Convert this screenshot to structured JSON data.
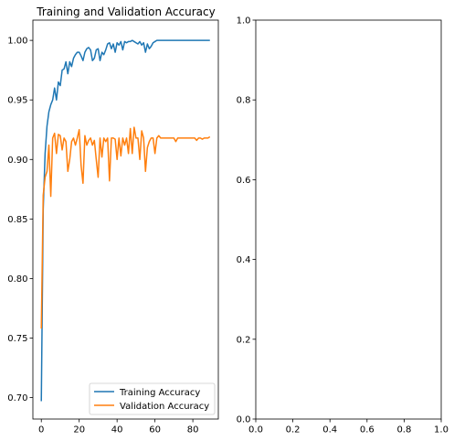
{
  "chart_data": [
    {
      "type": "line",
      "title": "Training and Validation Accuracy",
      "xlabel": "",
      "ylabel": "",
      "xlim": [
        -4.45,
        93.45
      ],
      "ylim": [
        0.682,
        1.017
      ],
      "xticks": [
        0,
        20,
        40,
        60,
        80
      ],
      "yticks": [
        0.7,
        0.75,
        0.8,
        0.85,
        0.9,
        0.95,
        1.0
      ],
      "xtick_labels": [
        "0",
        "20",
        "40",
        "60",
        "80"
      ],
      "ytick_labels": [
        "0.70",
        "0.75",
        "0.80",
        "0.85",
        "0.90",
        "0.95",
        "1.00"
      ],
      "grid": false,
      "legend": "lower-right",
      "series": [
        {
          "name": "Training Accuracy",
          "color": "#1f77b4",
          "x": [
            0,
            1,
            2,
            3,
            4,
            5,
            6,
            7,
            8,
            9,
            10,
            11,
            12,
            13,
            14,
            15,
            16,
            17,
            18,
            19,
            20,
            21,
            22,
            23,
            24,
            25,
            26,
            27,
            28,
            29,
            30,
            31,
            32,
            33,
            34,
            35,
            36,
            37,
            38,
            39,
            40,
            41,
            42,
            43,
            44,
            45,
            46,
            47,
            48,
            49,
            50,
            51,
            52,
            53,
            54,
            55,
            56,
            57,
            58,
            59,
            60,
            61,
            62,
            63,
            64,
            65,
            66,
            67,
            68,
            69,
            70,
            71,
            72,
            73,
            74,
            75,
            76,
            77,
            78,
            79,
            80,
            81,
            82,
            83,
            84,
            85,
            86,
            87,
            88,
            89
          ],
          "y": [
            0.697,
            0.858,
            0.905,
            0.928,
            0.94,
            0.946,
            0.95,
            0.96,
            0.95,
            0.965,
            0.962,
            0.975,
            0.976,
            0.982,
            0.972,
            0.982,
            0.978,
            0.985,
            0.988,
            0.99,
            0.99,
            0.987,
            0.983,
            0.99,
            0.993,
            0.994,
            0.992,
            0.983,
            0.985,
            0.992,
            0.993,
            0.983,
            0.99,
            0.988,
            0.992,
            0.997,
            0.998,
            0.993,
            0.997,
            0.99,
            0.998,
            0.996,
            0.999,
            0.992,
            0.999,
            0.998,
            0.999,
            0.999,
            1.0,
            0.999,
            0.998,
            0.997,
            0.999,
            0.996,
            0.998,
            0.99,
            0.997,
            0.993,
            0.995,
            0.998,
            0.999,
            1.0,
            1.0,
            1.0,
            1.0,
            1.0,
            1.0,
            1.0,
            1.0,
            1.0,
            1.0,
            1.0,
            1.0,
            1.0,
            1.0,
            1.0,
            1.0,
            1.0,
            1.0,
            1.0,
            1.0,
            1.0,
            1.0,
            1.0,
            1.0,
            1.0,
            1.0,
            1.0,
            1.0,
            1.0
          ]
        },
        {
          "name": "Validation Accuracy",
          "color": "#ff7f0e",
          "x": [
            0,
            1,
            2,
            3,
            4,
            5,
            6,
            7,
            8,
            9,
            10,
            11,
            12,
            13,
            14,
            15,
            16,
            17,
            18,
            19,
            20,
            21,
            22,
            23,
            24,
            25,
            26,
            27,
            28,
            29,
            30,
            31,
            32,
            33,
            34,
            35,
            36,
            37,
            38,
            39,
            40,
            41,
            42,
            43,
            44,
            45,
            46,
            47,
            48,
            49,
            50,
            51,
            52,
            53,
            54,
            55,
            56,
            57,
            58,
            59,
            60,
            61,
            62,
            63,
            64,
            65,
            66,
            67,
            68,
            69,
            70,
            71,
            72,
            73,
            74,
            75,
            76,
            77,
            78,
            79,
            80,
            81,
            82,
            83,
            84,
            85,
            86,
            87,
            88,
            89
          ],
          "y": [
            0.758,
            0.87,
            0.885,
            0.89,
            0.912,
            0.869,
            0.918,
            0.922,
            0.905,
            0.921,
            0.92,
            0.908,
            0.918,
            0.915,
            0.89,
            0.9,
            0.915,
            0.918,
            0.912,
            0.918,
            0.925,
            0.895,
            0.88,
            0.92,
            0.912,
            0.916,
            0.918,
            0.912,
            0.916,
            0.9,
            0.885,
            0.918,
            0.902,
            0.918,
            0.915,
            0.918,
            0.882,
            0.918,
            0.918,
            0.917,
            0.9,
            0.918,
            0.903,
            0.918,
            0.912,
            0.918,
            0.905,
            0.926,
            0.905,
            0.927,
            0.918,
            0.918,
            0.9,
            0.924,
            0.918,
            0.89,
            0.91,
            0.915,
            0.918,
            0.918,
            0.905,
            0.918,
            0.92,
            0.918,
            0.918,
            0.918,
            0.918,
            0.918,
            0.918,
            0.918,
            0.918,
            0.915,
            0.918,
            0.918,
            0.918,
            0.918,
            0.918,
            0.918,
            0.918,
            0.918,
            0.918,
            0.918,
            0.916,
            0.918,
            0.918,
            0.917,
            0.918,
            0.918,
            0.918,
            0.919
          ]
        }
      ]
    },
    {
      "type": "line",
      "title": "",
      "xlabel": "",
      "ylabel": "",
      "xlim": [
        0,
        1
      ],
      "ylim": [
        0,
        1
      ],
      "xticks": [
        0,
        0.2,
        0.4,
        0.6,
        0.8,
        1.0
      ],
      "yticks": [
        0,
        0.2,
        0.4,
        0.6,
        0.8,
        1.0
      ],
      "xtick_labels": [
        "0.0",
        "0.2",
        "0.4",
        "0.6",
        "0.8",
        "1.0"
      ],
      "ytick_labels": [
        "0.0",
        "0.2",
        "0.4",
        "0.6",
        "0.8",
        "1.0"
      ],
      "grid": false,
      "series": []
    }
  ]
}
